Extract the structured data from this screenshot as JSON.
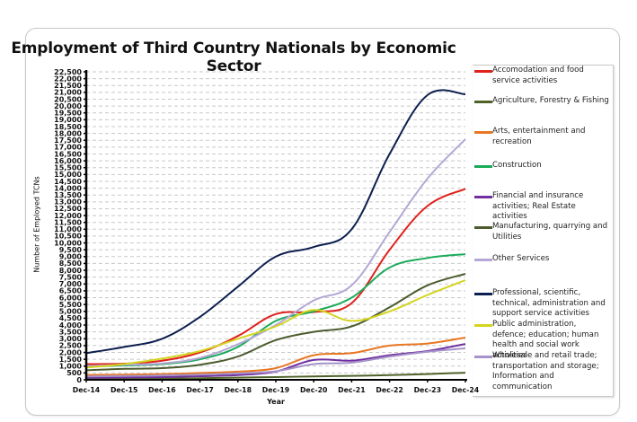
{
  "chart_data": {
    "type": "line",
    "title": "Employment of Third Country Nationals by Economic Sector",
    "xlabel": "Year",
    "ylabel": "Number of Employed TCNs",
    "ylim": [
      0,
      22500
    ],
    "ytick_step": 500,
    "yticks": [
      "0",
      "500",
      "1,000",
      "1,500",
      "2,000",
      "2,500",
      "3,000",
      "3,500",
      "4,000",
      "4,500",
      "5,000",
      "5,500",
      "6,000",
      "6,500",
      "7,000",
      "7,500",
      "8,000",
      "8,500",
      "9,000",
      "9,500",
      "10,000",
      "10,500",
      "11,000",
      "11,500",
      "12,000",
      "12,500",
      "13,000",
      "13,500",
      "14,000",
      "14,500",
      "15,000",
      "15,500",
      "16,000",
      "16,500",
      "17,000",
      "17,500",
      "18,000",
      "18,500",
      "19,000",
      "19,500",
      "20,000",
      "20,500",
      "21,000",
      "21,500",
      "22,000",
      "22,500"
    ],
    "categories": [
      "Dec-14",
      "Dec-15",
      "Dec-16",
      "Dec-17",
      "Dec-18",
      "Dec-19",
      "Dec-20",
      "Dec-21",
      "Dec-22",
      "Dec-23",
      "Dec-24"
    ],
    "grid": "horizontal dashed",
    "legend_position": "right",
    "series": [
      {
        "name": "Accomodation and food service activities",
        "color": "#e0201b",
        "values": [
          1150,
          1180,
          1400,
          2000,
          3200,
          4800,
          4950,
          5600,
          9500,
          12700,
          13950
        ]
      },
      {
        "name": "Agriculture, Forestry & Fishing",
        "color": "#4f6228",
        "values": [
          60,
          70,
          90,
          120,
          160,
          200,
          250,
          290,
          340,
          420,
          520
        ]
      },
      {
        "name": "Arts, entertainment and recreation",
        "color": "#e87722",
        "values": [
          350,
          380,
          420,
          500,
          600,
          850,
          1800,
          1950,
          2500,
          2650,
          3080
        ]
      },
      {
        "name": "Construction",
        "color": "#1aab5a",
        "values": [
          950,
          1050,
          1150,
          1500,
          2400,
          4300,
          5000,
          6000,
          8200,
          8900,
          9180
        ]
      },
      {
        "name": "Financial and insurance activities; Real Estate activities",
        "color": "#7030a0",
        "values": [
          150,
          170,
          200,
          260,
          350,
          600,
          1450,
          1400,
          1800,
          2100,
          2620
        ]
      },
      {
        "name": "Manufacturing, quarrying and Utilities",
        "color": "#4c5c2e",
        "values": [
          700,
          800,
          850,
          1100,
          1700,
          2900,
          3500,
          3900,
          5300,
          6900,
          7740
        ]
      },
      {
        "name": "Other Services",
        "color": "#b4a7d6",
        "values": [
          1000,
          1100,
          1200,
          1600,
          2600,
          4000,
          5800,
          6900,
          10800,
          14700,
          17580
        ]
      },
      {
        "name": "Professional, scientific, technical, administration and support service activities",
        "color": "#0d1f4f",
        "values": [
          1950,
          2400,
          3000,
          4600,
          6800,
          9000,
          9700,
          11000,
          16500,
          20800,
          20860
        ]
      },
      {
        "name": "Public administration, defence; education; human health and social work activities",
        "color": "#d4d41e",
        "values": [
          900,
          1150,
          1550,
          2100,
          3000,
          3900,
          5100,
          4300,
          5000,
          6200,
          7280
        ]
      },
      {
        "name": "Wholesale and retail trade; transportation and storage; Information and communication",
        "color": "#a592c9",
        "values": [
          250,
          280,
          320,
          380,
          470,
          620,
          1150,
          1250,
          1700,
          2050,
          2300
        ]
      }
    ]
  }
}
